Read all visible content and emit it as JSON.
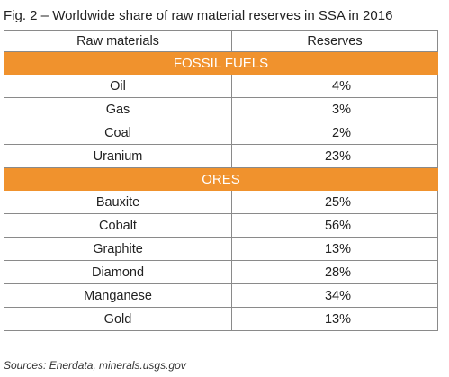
{
  "caption": "Fig. 2 – Worldwide share of raw material reserves in SSA in 2016",
  "table": {
    "headers": [
      "Raw materials",
      "Reserves"
    ],
    "sections": [
      {
        "title": "FOSSIL FUELS",
        "rows": [
          {
            "material": "Oil",
            "reserves": "4%"
          },
          {
            "material": "Gas",
            "reserves": "3%"
          },
          {
            "material": "Coal",
            "reserves": "2%"
          },
          {
            "material": "Uranium",
            "reserves": "23%"
          }
        ]
      },
      {
        "title": "ORES",
        "rows": [
          {
            "material": "Bauxite",
            "reserves": "25%"
          },
          {
            "material": "Cobalt",
            "reserves": "56%"
          },
          {
            "material": "Graphite",
            "reserves": "13%"
          },
          {
            "material": "Diamond",
            "reserves": "28%"
          },
          {
            "material": "Manganese",
            "reserves": "34%"
          },
          {
            "material": "Gold",
            "reserves": "13%"
          }
        ]
      }
    ]
  },
  "source": "Sources: Enerdata, minerals.usgs.gov",
  "colors": {
    "section_band": "#f0922d",
    "section_text": "#ffffff",
    "border": "#8a8a8a"
  }
}
